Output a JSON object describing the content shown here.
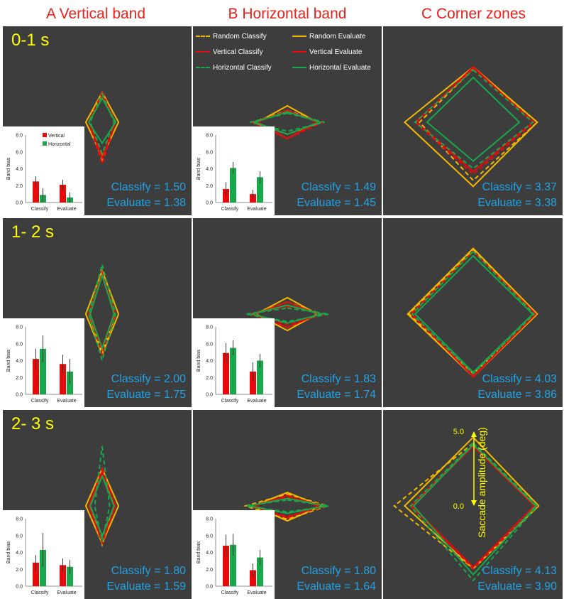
{
  "columns": [
    {
      "title": "A Vertical band"
    },
    {
      "title": "B Horizontal band"
    },
    {
      "title": "C Corner zones"
    }
  ],
  "rows": [
    {
      "time_label": "0-1 s"
    },
    {
      "time_label": "1- 2 s"
    },
    {
      "time_label": "2- 3 s"
    }
  ],
  "legend": [
    {
      "name": "Random Classify",
      "color": "#f5b800",
      "dashed": true
    },
    {
      "name": "Random Evaluate",
      "color": "#f5b800",
      "dashed": false
    },
    {
      "name": "Vertical Classify",
      "color": "#e80a0a",
      "dashed": true
    },
    {
      "name": "Vertical Evaluate",
      "color": "#e80a0a",
      "dashed": false
    },
    {
      "name": "Horizontal Classify",
      "color": "#18a84b",
      "dashed": true
    },
    {
      "name": "Horizontal Evaluate",
      "color": "#18a84b",
      "dashed": false
    }
  ],
  "scale_axis": {
    "label": "Saccade amplitude (deg)",
    "max_label": "5.0",
    "min_label": "0.0",
    "color": "#ffff00"
  },
  "inset_axis": {
    "ylabel": "Band bias",
    "ylim": [
      0,
      8
    ],
    "ticks": [
      "0.0",
      "2.0",
      "4.0",
      "6.0",
      "8.0"
    ],
    "categories": [
      "Classify",
      "Evaluate"
    ],
    "series": [
      {
        "name": "Vertical",
        "color": "#e80a0a"
      },
      {
        "name": "Horizontal",
        "color": "#18a84b"
      }
    ]
  },
  "chart_data": [
    {
      "type": "radar",
      "panel": "A Vertical band",
      "row": "0-1 s",
      "classify_label": "Classify",
      "classify_value": "1.50",
      "evaluate_label": "Evaluate",
      "evaluate_value": "1.38",
      "shapes": {
        "Random Classify": [
          2.0,
          0.9,
          2.5,
          0.9
        ],
        "Random Evaluate": [
          2.0,
          1.1,
          2.3,
          1.1
        ],
        "Vertical Classify": [
          2.0,
          0.9,
          2.8,
          0.9
        ],
        "Vertical Evaluate": [
          1.8,
          0.9,
          2.4,
          0.9
        ],
        "Horizontal Classify": [
          1.9,
          0.8,
          2.1,
          0.8
        ],
        "Horizontal Evaluate": [
          1.6,
          0.9,
          1.4,
          0.9
        ]
      },
      "bars": {
        "Vertical": [
          2.5,
          2.1
        ],
        "Horizontal": [
          0.9,
          0.6
        ],
        "err_vertical": [
          0.6,
          0.6
        ],
        "err_horizontal": [
          0.8,
          0.6
        ]
      }
    },
    {
      "type": "radar",
      "panel": "B Horizontal band",
      "row": "0-1 s",
      "classify_label": "Classify",
      "classify_value": "1.49",
      "evaluate_label": "Evaluate",
      "evaluate_value": "1.45",
      "shapes": {
        "Random Classify": [
          0.8,
          2.3,
          0.8,
          2.3
        ],
        "Random Evaluate": [
          1.1,
          2.0,
          1.1,
          2.0
        ],
        "Vertical Classify": [
          0.7,
          2.4,
          1.1,
          2.4
        ],
        "Vertical Evaluate": [
          0.8,
          2.0,
          1.1,
          2.0
        ],
        "Horizontal Classify": [
          0.6,
          2.5,
          0.6,
          2.5
        ],
        "Horizontal Evaluate": [
          0.7,
          2.2,
          0.8,
          2.2
        ]
      },
      "bars": {
        "Vertical": [
          1.6,
          1.0
        ],
        "Horizontal": [
          4.1,
          3.0
        ],
        "err_vertical": [
          0.8,
          0.5
        ],
        "err_horizontal": [
          0.7,
          0.7
        ]
      }
    },
    {
      "type": "radar",
      "panel": "C Corner zones",
      "row": "0-1 s",
      "classify_label": "Classify",
      "classify_value": "3.37",
      "evaluate_label": "Evaluate",
      "evaluate_value": "3.38",
      "shapes": {
        "Random Classify": [
          3.6,
          4.3,
          3.9,
          3.6
        ],
        "Random Evaluate": [
          3.7,
          4.3,
          4.3,
          4.6
        ],
        "Vertical Classify": [
          3.6,
          4.1,
          3.5,
          3.9
        ],
        "Vertical Evaluate": [
          3.7,
          4.0,
          3.3,
          3.8
        ],
        "Horizontal Classify": [
          3.5,
          4.0,
          3.1,
          3.9
        ],
        "Horizontal Evaluate": [
          3.0,
          3.1,
          2.6,
          3.1
        ]
      },
      "bars": {
        "Vertical": [],
        "Horizontal": [],
        "err_vertical": [],
        "err_horizontal": []
      }
    },
    {
      "type": "radar",
      "panel": "A Vertical band",
      "row": "1- 2 s",
      "classify_label": "Classify",
      "classify_value": "2.00",
      "evaluate_label": "Evaluate",
      "evaluate_value": "1.75",
      "shapes": {
        "Random Classify": [
          2.6,
          0.9,
          2.6,
          0.9
        ],
        "Random Evaluate": [
          2.9,
          1.1,
          2.7,
          1.1
        ],
        "Vertical Classify": [
          2.8,
          0.8,
          2.7,
          0.8
        ],
        "Vertical Evaluate": [
          2.6,
          0.9,
          2.2,
          0.9
        ],
        "Horizontal Classify": [
          3.3,
          0.9,
          3.1,
          0.9
        ],
        "Horizontal Evaluate": [
          2.6,
          0.8,
          2.3,
          0.8
        ]
      },
      "bars": {
        "Vertical": [
          4.2,
          3.6
        ],
        "Horizontal": [
          5.4,
          2.7
        ],
        "err_vertical": [
          1.2,
          1.1
        ],
        "err_horizontal": [
          1.6,
          1.5
        ]
      }
    },
    {
      "type": "radar",
      "panel": "B Horizontal band",
      "row": "1- 2 s",
      "classify_label": "Classify",
      "classify_value": "1.83",
      "evaluate_label": "Evaluate",
      "evaluate_value": "1.74",
      "shapes": {
        "Random Classify": [
          0.8,
          2.3,
          0.9,
          2.3
        ],
        "Random Evaluate": [
          1.1,
          2.0,
          1.1,
          2.1
        ],
        "Vertical Classify": [
          0.5,
          2.6,
          0.7,
          2.6
        ],
        "Vertical Evaluate": [
          0.8,
          2.1,
          0.9,
          2.2
        ],
        "Horizontal Classify": [
          0.4,
          2.8,
          0.5,
          2.8
        ],
        "Horizontal Evaluate": [
          0.6,
          2.3,
          0.6,
          2.4
        ]
      },
      "bars": {
        "Vertical": [
          4.9,
          2.7
        ],
        "Horizontal": [
          5.5,
          4.0
        ],
        "err_vertical": [
          1.2,
          1.1
        ],
        "err_horizontal": [
          0.9,
          0.8
        ]
      }
    },
    {
      "type": "radar",
      "panel": "C Corner zones",
      "row": "1- 2 s",
      "classify_label": "Classify",
      "classify_value": "4.03",
      "evaluate_label": "Evaluate",
      "evaluate_value": "3.86",
      "shapes": {
        "Random Classify": [
          4.3,
          4.3,
          4.0,
          4.3
        ],
        "Random Evaluate": [
          4.4,
          4.3,
          4.2,
          4.4
        ],
        "Vertical Classify": [
          4.2,
          4.1,
          4.1,
          4.2
        ],
        "Vertical Evaluate": [
          4.2,
          4.2,
          4.2,
          4.1
        ],
        "Horizontal Classify": [
          4.2,
          4.1,
          4.0,
          4.1
        ],
        "Horizontal Evaluate": [
          3.9,
          4.0,
          3.9,
          3.9
        ]
      },
      "bars": {
        "Vertical": [],
        "Horizontal": [],
        "err_vertical": [],
        "err_horizontal": []
      }
    },
    {
      "type": "radar",
      "panel": "A Vertical band",
      "row": "2- 3 s",
      "classify_label": "Classify",
      "classify_value": "1.80",
      "evaluate_label": "Evaluate",
      "evaluate_value": "1.59",
      "shapes": {
        "Random Classify": [
          2.4,
          0.8,
          2.6,
          0.8
        ],
        "Random Evaluate": [
          2.5,
          1.1,
          2.5,
          1.1
        ],
        "Vertical Classify": [
          2.5,
          0.9,
          2.5,
          0.9
        ],
        "Vertical Evaluate": [
          2.3,
          0.9,
          2.4,
          0.9
        ],
        "Horizontal Classify": [
          4.0,
          0.5,
          2.4,
          0.5
        ],
        "Horizontal Evaluate": [
          2.0,
          0.8,
          2.0,
          0.8
        ]
      },
      "bars": {
        "Vertical": [
          2.8,
          2.5
        ],
        "Horizontal": [
          4.3,
          2.3
        ],
        "err_vertical": [
          0.9,
          0.8
        ],
        "err_horizontal": [
          2.0,
          0.8
        ]
      }
    },
    {
      "type": "radar",
      "panel": "B Horizontal band",
      "row": "2- 3 s",
      "classify_label": "Classify",
      "classify_value": "1.80",
      "evaluate_label": "Evaluate",
      "evaluate_value": "1.64",
      "shapes": {
        "Random Classify": [
          0.8,
          2.7,
          0.9,
          2.8
        ],
        "Random Evaluate": [
          0.9,
          2.3,
          1.0,
          2.3
        ],
        "Vertical Classify": [
          0.6,
          2.7,
          0.7,
          2.6
        ],
        "Vertical Evaluate": [
          0.7,
          2.1,
          0.8,
          2.2
        ],
        "Horizontal Classify": [
          0.4,
          2.8,
          0.4,
          2.8
        ],
        "Horizontal Evaluate": [
          0.5,
          2.6,
          0.5,
          2.6
        ]
      },
      "bars": {
        "Vertical": [
          4.8,
          1.9
        ],
        "Horizontal": [
          4.9,
          3.4
        ],
        "err_vertical": [
          1.3,
          0.8
        ],
        "err_horizontal": [
          1.3,
          0.9
        ]
      }
    },
    {
      "type": "radar",
      "panel": "C Corner zones",
      "row": "2- 3 s",
      "classify_label": "Classify",
      "classify_value": "4.13",
      "evaluate_label": "Evaluate",
      "evaluate_value": "3.90",
      "shapes": {
        "Random Classify": [
          4.2,
          4.3,
          4.2,
          5.3
        ],
        "Random Evaluate": [
          4.6,
          4.4,
          4.2,
          4.6
        ],
        "Vertical Classify": [
          4.1,
          4.3,
          4.2,
          4.2
        ],
        "Vertical Evaluate": [
          4.0,
          4.1,
          4.1,
          4.1
        ],
        "Horizontal Classify": [
          4.2,
          4.3,
          5.0,
          4.2
        ],
        "Horizontal Evaluate": [
          4.1,
          4.2,
          4.6,
          4.0
        ]
      },
      "bars": {
        "Vertical": [],
        "Horizontal": [],
        "err_vertical": [],
        "err_horizontal": []
      }
    }
  ]
}
